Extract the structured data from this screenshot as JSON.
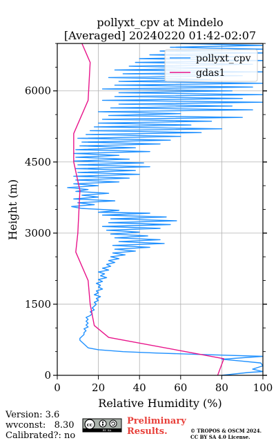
{
  "chart_data": {
    "type": "line",
    "title_line1": "pollyxt_cpv at Mindelo",
    "title_line2": "[Averaged] 20240220 01:42-02:07",
    "xlabel": "Relative Humidity (%)",
    "ylabel": "Height (m)",
    "xlim": [
      0,
      100
    ],
    "ylim": [
      0,
      7000
    ],
    "x_ticks": [
      0,
      20,
      40,
      60,
      80,
      100
    ],
    "y_ticks": [
      0,
      1500,
      3000,
      4500,
      6000
    ],
    "grid": true,
    "legend_position": "top-right",
    "series": [
      {
        "name": "pollyxt_cpv",
        "color": "#1E90FF",
        "points": [
          [
            80,
            0
          ],
          [
            93,
            60
          ],
          [
            100,
            80
          ],
          [
            95,
            130
          ],
          [
            100,
            200
          ],
          [
            99,
            260
          ],
          [
            90,
            300
          ],
          [
            80,
            340
          ],
          [
            100,
            400
          ],
          [
            70,
            440
          ],
          [
            48,
            470
          ],
          [
            32,
            500
          ],
          [
            20,
            540
          ],
          [
            15,
            580
          ],
          [
            14,
            620
          ],
          [
            13,
            660
          ],
          [
            12,
            700
          ],
          [
            11,
            740
          ],
          [
            11,
            780
          ],
          [
            12,
            820
          ],
          [
            13,
            860
          ],
          [
            13,
            900
          ],
          [
            14,
            940
          ],
          [
            13,
            980
          ],
          [
            15,
            1020
          ],
          [
            14,
            1060
          ],
          [
            15,
            1100
          ],
          [
            14,
            1140
          ],
          [
            15,
            1180
          ],
          [
            14,
            1220
          ],
          [
            16,
            1260
          ],
          [
            17,
            1300
          ],
          [
            16,
            1340
          ],
          [
            18,
            1380
          ],
          [
            17,
            1420
          ],
          [
            18,
            1460
          ],
          [
            19,
            1500
          ],
          [
            18,
            1540
          ],
          [
            20,
            1580
          ],
          [
            19,
            1620
          ],
          [
            21,
            1660
          ],
          [
            18,
            1700
          ],
          [
            20,
            1740
          ],
          [
            19,
            1780
          ],
          [
            22,
            1820
          ],
          [
            20,
            1860
          ],
          [
            21,
            1900
          ],
          [
            19,
            1940
          ],
          [
            22,
            1980
          ],
          [
            20,
            2020
          ],
          [
            24,
            2060
          ],
          [
            21,
            2100
          ],
          [
            23,
            2140
          ],
          [
            20,
            2180
          ],
          [
            25,
            2220
          ],
          [
            22,
            2260
          ],
          [
            26,
            2300
          ],
          [
            24,
            2340
          ],
          [
            28,
            2380
          ],
          [
            25,
            2420
          ],
          [
            30,
            2460
          ],
          [
            26,
            2500
          ],
          [
            33,
            2540
          ],
          [
            27,
            2580
          ],
          [
            38,
            2620
          ],
          [
            28,
            2660
          ],
          [
            45,
            2700
          ],
          [
            27,
            2740
          ],
          [
            52,
            2780
          ],
          [
            30,
            2820
          ],
          [
            50,
            2860
          ],
          [
            28,
            2900
          ],
          [
            44,
            2940
          ],
          [
            26,
            2980
          ],
          [
            40,
            3020
          ],
          [
            24,
            3060
          ],
          [
            50,
            3100
          ],
          [
            22,
            3140
          ],
          [
            55,
            3180
          ],
          [
            25,
            3220
          ],
          [
            58,
            3260
          ],
          [
            26,
            3300
          ],
          [
            53,
            3340
          ],
          [
            22,
            3380
          ],
          [
            45,
            3420
          ],
          [
            20,
            3440
          ],
          [
            30,
            3480
          ],
          [
            12,
            3520
          ],
          [
            7,
            3560
          ],
          [
            18,
            3600
          ],
          [
            10,
            3640
          ],
          [
            28,
            3680
          ],
          [
            8,
            3720
          ],
          [
            20,
            3760
          ],
          [
            12,
            3800
          ],
          [
            25,
            3840
          ],
          [
            9,
            3880
          ],
          [
            15,
            3920
          ],
          [
            5,
            3960
          ],
          [
            20,
            4000
          ],
          [
            8,
            4040
          ],
          [
            30,
            4080
          ],
          [
            9,
            4120
          ],
          [
            35,
            4160
          ],
          [
            8,
            4200
          ],
          [
            40,
            4240
          ],
          [
            10,
            4280
          ],
          [
            38,
            4320
          ],
          [
            9,
            4360
          ],
          [
            45,
            4400
          ],
          [
            10,
            4440
          ],
          [
            42,
            4480
          ],
          [
            8,
            4520
          ],
          [
            35,
            4560
          ],
          [
            9,
            4600
          ],
          [
            30,
            4640
          ],
          [
            8,
            4680
          ],
          [
            45,
            4720
          ],
          [
            9,
            4760
          ],
          [
            38,
            4800
          ],
          [
            11,
            4840
          ],
          [
            50,
            4880
          ],
          [
            12,
            4920
          ],
          [
            55,
            4960
          ],
          [
            10,
            5000
          ],
          [
            60,
            5040
          ],
          [
            14,
            5080
          ],
          [
            70,
            5120
          ],
          [
            16,
            5160
          ],
          [
            80,
            5200
          ],
          [
            18,
            5240
          ],
          [
            65,
            5280
          ],
          [
            20,
            5320
          ],
          [
            75,
            5360
          ],
          [
            22,
            5400
          ],
          [
            90,
            5440
          ],
          [
            25,
            5480
          ],
          [
            60,
            5520
          ],
          [
            20,
            5560
          ],
          [
            95,
            5600
          ],
          [
            26,
            5640
          ],
          [
            85,
            5680
          ],
          [
            30,
            5720
          ],
          [
            100,
            5760
          ],
          [
            22,
            5800
          ],
          [
            90,
            5840
          ],
          [
            28,
            5880
          ],
          [
            100,
            5920
          ],
          [
            30,
            5960
          ],
          [
            85,
            6000
          ],
          [
            22,
            6040
          ],
          [
            95,
            6080
          ],
          [
            28,
            6120
          ],
          [
            100,
            6160
          ],
          [
            30,
            6200
          ],
          [
            75,
            6240
          ],
          [
            25,
            6280
          ],
          [
            90,
            6320
          ],
          [
            32,
            6360
          ],
          [
            100,
            6400
          ],
          [
            28,
            6440
          ],
          [
            80,
            6480
          ],
          [
            35,
            6520
          ],
          [
            95,
            6560
          ],
          [
            38,
            6600
          ],
          [
            100,
            6640
          ],
          [
            40,
            6680
          ],
          [
            90,
            6720
          ],
          [
            45,
            6760
          ],
          [
            100,
            6800
          ],
          [
            50,
            6840
          ],
          [
            100,
            6880
          ],
          [
            55,
            6920
          ],
          [
            100,
            6960
          ],
          [
            60,
            7000
          ]
        ]
      },
      {
        "name": "gdas1",
        "color": "#E8138A",
        "points": [
          [
            78,
            0
          ],
          [
            81,
            350
          ],
          [
            25,
            800
          ],
          [
            18,
            1050
          ],
          [
            16,
            1500
          ],
          [
            15,
            2000
          ],
          [
            9,
            2600
          ],
          [
            10,
            3000
          ],
          [
            11,
            3900
          ],
          [
            8,
            4500
          ],
          [
            8,
            5100
          ],
          [
            15,
            5800
          ],
          [
            16,
            6600
          ],
          [
            12,
            7000
          ]
        ]
      }
    ]
  },
  "footer": {
    "version": "Version: 3.6",
    "wvconst": "wvconst:   8.30",
    "calibrated": "Calibrated?: no",
    "preliminary_line1": "Preliminary",
    "preliminary_line2": "Results.",
    "copyright_line1": "© TROPOS & OSCM 2024.",
    "copyright_line2": "CC BY SA 4.0 License.",
    "license_badge_text": "BY SA"
  }
}
